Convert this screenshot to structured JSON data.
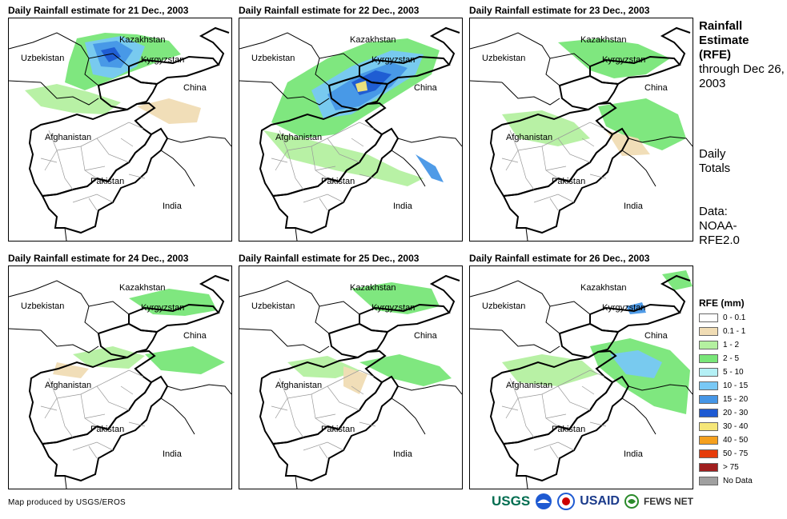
{
  "panels": [
    {
      "title": "Daily Rainfall estimate for 21 Dec., 2003",
      "rain": "d21"
    },
    {
      "title": "Daily Rainfall estimate for 22 Dec., 2003",
      "rain": "d22"
    },
    {
      "title": "Daily Rainfall estimate for 23 Dec., 2003",
      "rain": "d23"
    },
    {
      "title": "Daily Rainfall estimate for 24 Dec., 2003",
      "rain": "d24"
    },
    {
      "title": "Daily Rainfall estimate for 25 Dec., 2003",
      "rain": "d25"
    },
    {
      "title": "Daily Rainfall estimate for 26 Dec., 2003",
      "rain": "d26"
    }
  ],
  "map_labels": {
    "kazakhstan": "Kazakhstan",
    "uzbekistan": "Uzbekistan",
    "kyrgyzstan": "Kyrgyzstan",
    "china": "China",
    "afghanistan": "Afghanistan",
    "pakistan": "Pakistan",
    "india": "India"
  },
  "side": {
    "title_bold": "Rainfall Estimate (RFE)",
    "title_rest": "through Dec 26, 2003",
    "daily": "Daily Totals",
    "data": "Data: NOAA-RFE2.0"
  },
  "legend": {
    "title": "RFE (mm)",
    "items": [
      {
        "label": "0 - 0.1",
        "color": "#ffffff"
      },
      {
        "label": "0.1 - 1",
        "color": "#f0dcb4"
      },
      {
        "label": "1 - 2",
        "color": "#b4f0a0"
      },
      {
        "label": "2 - 5",
        "color": "#78e678"
      },
      {
        "label": "5 - 10",
        "color": "#b4f0f5"
      },
      {
        "label": "10 - 15",
        "color": "#78c8f5"
      },
      {
        "label": "15 - 20",
        "color": "#4696e6"
      },
      {
        "label": "20 - 30",
        "color": "#1e5ad2"
      },
      {
        "label": "30 - 40",
        "color": "#f5e678"
      },
      {
        "label": "40 - 50",
        "color": "#f5a01e"
      },
      {
        "label": "50 - 75",
        "color": "#e63c0a"
      },
      {
        "label": "> 75",
        "color": "#a01e1e"
      },
      {
        "label": "No Data",
        "color": "#a0a0a0"
      }
    ]
  },
  "credit": "Map produced by USGS/EROS",
  "logos": {
    "usgs": "USGS",
    "usaid": "USAID",
    "fews": "FEWS NET"
  }
}
